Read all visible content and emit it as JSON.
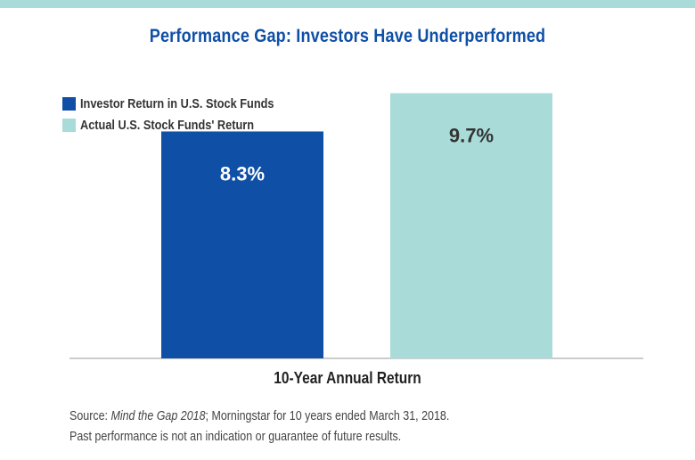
{
  "colors": {
    "top_band": "#a9dcd9",
    "title": "#0f4fa6",
    "investor_bar": "#0f4fa6",
    "fund_bar": "#a9dcd9",
    "axis_line": "#bbbbbb"
  },
  "chart_data": {
    "type": "bar",
    "title": "Performance Gap: Investors Have Underperformed",
    "xlabel": "10-Year Annual Return",
    "ylabel": "",
    "ylim": [
      0,
      10.5
    ],
    "grid": false,
    "legend_position": "top-left",
    "categories": [
      "10-Year Annual Return"
    ],
    "series": [
      {
        "name": "Investor Return in U.S. Stock Funds",
        "values": [
          8.3
        ],
        "label": "8.3%",
        "color": "#0f4fa6",
        "label_color": "#ffffff"
      },
      {
        "name": "Actual U.S. Stock Funds' Return",
        "values": [
          9.7
        ],
        "label": "9.7%",
        "color": "#a9dcd9",
        "label_color": "#333333"
      }
    ]
  },
  "source": {
    "prefix": "Source: ",
    "italic": "Mind the Gap 2018",
    "suffix": "; Morningstar for 10 years ended March 31, 2018.",
    "disclaimer": "Past performance is not an indication or guarantee of future results."
  }
}
